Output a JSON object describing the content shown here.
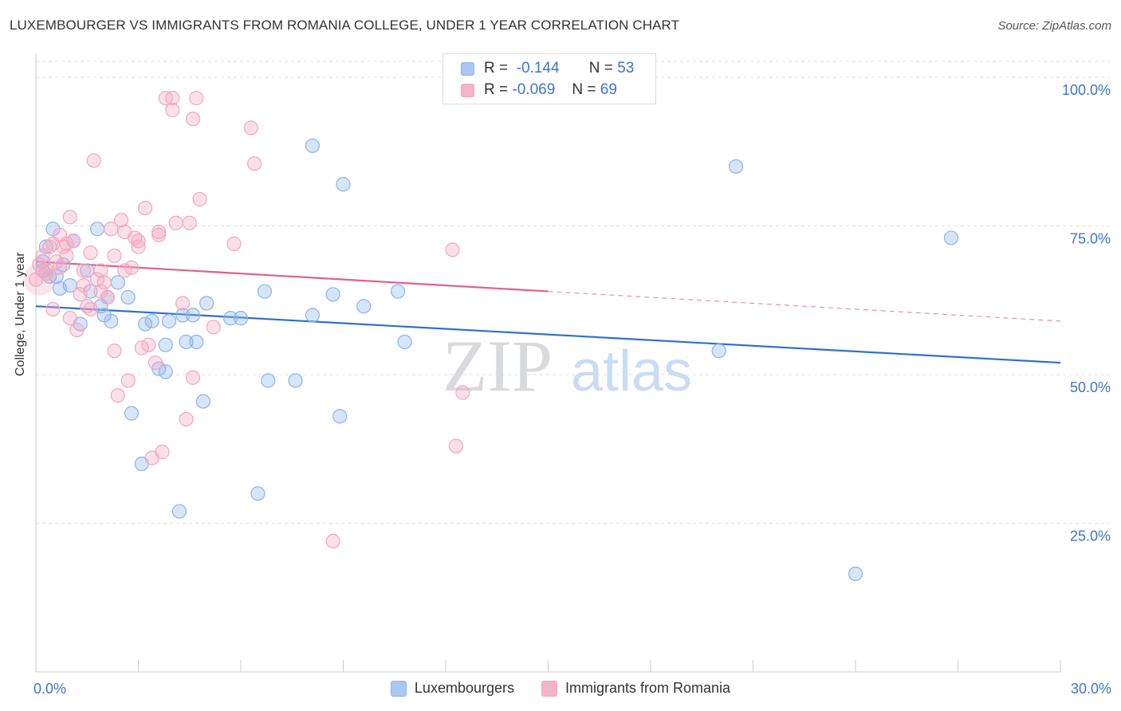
{
  "title": "LUXEMBOURGER VS IMMIGRANTS FROM ROMANIA COLLEGE, UNDER 1 YEAR CORRELATION CHART",
  "source": "Source: ZipAtlas.com",
  "watermark": {
    "zip": "ZIP",
    "atlas": "atlas"
  },
  "legend_top": [
    {
      "r_label": "R =",
      "r_value": "-0.144",
      "n_label": "N =",
      "n_value": "53",
      "color": "#a9c8f3"
    },
    {
      "r_label": "R =",
      "r_value": "-0.069",
      "n_label": "N =",
      "n_value": "69",
      "color": "#f6b3c8"
    }
  ],
  "chart_data": {
    "type": "scatter",
    "title": "LUXEMBOURGER VS IMMIGRANTS FROM ROMANIA COLLEGE, UNDER 1 YEAR CORRELATION CHART",
    "xlabel": "",
    "ylabel": "College, Under 1 year",
    "xlim": [
      0,
      30
    ],
    "ylim": [
      0,
      105
    ],
    "x_tick_labels": [
      {
        "value": 0,
        "label": "0.0%"
      },
      {
        "value": 30,
        "label": "30.0%"
      }
    ],
    "y_tick_labels": [
      {
        "value": 25,
        "label": "25.0%"
      },
      {
        "value": 50,
        "label": "50.0%"
      },
      {
        "value": 75,
        "label": "75.0%"
      },
      {
        "value": 100,
        "label": "100.0%"
      }
    ],
    "grid": true,
    "legend_position": "bottom",
    "series": [
      {
        "name": "Luxembourgers",
        "color": "#8db4ec",
        "line_color": "#2f6fd0",
        "trend": {
          "x0": 0,
          "y0": 61.5,
          "x1": 30,
          "y1": 52.0,
          "dash_from": null
        },
        "points": [
          [
            0.2,
            69.0
          ],
          [
            0.2,
            67.5
          ],
          [
            0.3,
            71.5
          ],
          [
            0.4,
            66.5
          ],
          [
            0.5,
            74.5
          ],
          [
            0.6,
            66.5
          ],
          [
            0.7,
            64.5
          ],
          [
            0.8,
            68.5
          ],
          [
            1.0,
            65.0
          ],
          [
            1.1,
            72.5
          ],
          [
            1.3,
            58.5
          ],
          [
            1.5,
            67.5
          ],
          [
            1.6,
            64.0
          ],
          [
            1.8,
            74.5
          ],
          [
            1.9,
            61.5
          ],
          [
            2.0,
            60.0
          ],
          [
            2.1,
            63.0
          ],
          [
            2.2,
            59.0
          ],
          [
            2.4,
            65.5
          ],
          [
            2.7,
            63.0
          ],
          [
            2.8,
            43.5
          ],
          [
            3.1,
            35.0
          ],
          [
            3.2,
            58.5
          ],
          [
            3.4,
            59.0
          ],
          [
            3.6,
            51.0
          ],
          [
            3.8,
            55.0
          ],
          [
            3.8,
            50.5
          ],
          [
            3.9,
            59.0
          ],
          [
            4.2,
            27.0
          ],
          [
            4.3,
            60.0
          ],
          [
            4.4,
            55.5
          ],
          [
            4.6,
            60.0
          ],
          [
            4.7,
            55.5
          ],
          [
            4.9,
            45.5
          ],
          [
            5.0,
            62.0
          ],
          [
            5.7,
            59.5
          ],
          [
            6.0,
            59.5
          ],
          [
            6.5,
            30.0
          ],
          [
            6.7,
            64.0
          ],
          [
            6.8,
            49.0
          ],
          [
            7.6,
            49.0
          ],
          [
            8.1,
            60.0
          ],
          [
            8.1,
            88.5
          ],
          [
            8.7,
            63.5
          ],
          [
            8.9,
            43.0
          ],
          [
            9.0,
            82.0
          ],
          [
            9.6,
            61.5
          ],
          [
            10.6,
            64.0
          ],
          [
            10.8,
            55.5
          ],
          [
            20.0,
            54.0
          ],
          [
            20.5,
            85.0
          ],
          [
            24.0,
            16.5
          ],
          [
            26.8,
            73.0
          ]
        ]
      },
      {
        "name": "Immigrants from Romania",
        "color": "#f4a6bf",
        "line_color": "#e35f8a",
        "trend": {
          "x0": 0,
          "y0": 69.0,
          "x1": 30,
          "y1": 59.0,
          "dash_from": 15
        },
        "points": [
          [
            0.0,
            66.0
          ],
          [
            0.1,
            68.5
          ],
          [
            0.2,
            70.0
          ],
          [
            0.3,
            67.0
          ],
          [
            0.4,
            71.5
          ],
          [
            0.5,
            72.0
          ],
          [
            0.6,
            69.0
          ],
          [
            0.7,
            73.5
          ],
          [
            0.7,
            68.0
          ],
          [
            0.8,
            71.5
          ],
          [
            0.9,
            70.0
          ],
          [
            1.0,
            76.5
          ],
          [
            1.0,
            59.5
          ],
          [
            1.1,
            72.5
          ],
          [
            1.2,
            57.5
          ],
          [
            1.3,
            63.5
          ],
          [
            1.4,
            67.5
          ],
          [
            1.5,
            61.5
          ],
          [
            1.6,
            70.5
          ],
          [
            1.7,
            86.0
          ],
          [
            1.8,
            66.0
          ],
          [
            1.9,
            67.5
          ],
          [
            2.0,
            65.5
          ],
          [
            2.1,
            63.0
          ],
          [
            2.2,
            74.5
          ],
          [
            2.3,
            70.0
          ],
          [
            2.3,
            54.0
          ],
          [
            2.4,
            46.5
          ],
          [
            2.5,
            76.0
          ],
          [
            2.6,
            74.0
          ],
          [
            2.6,
            67.5
          ],
          [
            2.7,
            49.0
          ],
          [
            3.0,
            72.5
          ],
          [
            3.0,
            71.5
          ],
          [
            3.1,
            54.5
          ],
          [
            3.2,
            78.0
          ],
          [
            3.3,
            55.0
          ],
          [
            3.4,
            36.0
          ],
          [
            3.5,
            52.0
          ],
          [
            3.6,
            74.0
          ],
          [
            3.7,
            37.0
          ],
          [
            3.8,
            96.5
          ],
          [
            4.0,
            94.5
          ],
          [
            4.0,
            96.5
          ],
          [
            4.1,
            75.5
          ],
          [
            4.3,
            62.0
          ],
          [
            4.4,
            42.5
          ],
          [
            4.5,
            75.5
          ],
          [
            4.6,
            49.5
          ],
          [
            4.6,
            93.0
          ],
          [
            4.7,
            96.5
          ],
          [
            4.8,
            79.5
          ],
          [
            5.2,
            58.0
          ],
          [
            5.8,
            72.0
          ],
          [
            6.3,
            91.5
          ],
          [
            6.4,
            85.5
          ],
          [
            8.7,
            22.0
          ],
          [
            12.2,
            71.0
          ],
          [
            12.3,
            38.0
          ],
          [
            12.5,
            47.0
          ],
          [
            1.4,
            65.0
          ],
          [
            2.9,
            73.0
          ],
          [
            0.5,
            61.0
          ],
          [
            1.9,
            64.0
          ],
          [
            2.8,
            68.0
          ],
          [
            0.9,
            72.0
          ],
          [
            1.6,
            61.0
          ],
          [
            3.6,
            73.5
          ],
          [
            0.3,
            67.5
          ]
        ]
      }
    ]
  },
  "legend_bottom": [
    {
      "label": "Luxembourgers",
      "color": "#a9c8f3"
    },
    {
      "label": "Immigrants from Romania",
      "color": "#f6b3c8"
    }
  ]
}
